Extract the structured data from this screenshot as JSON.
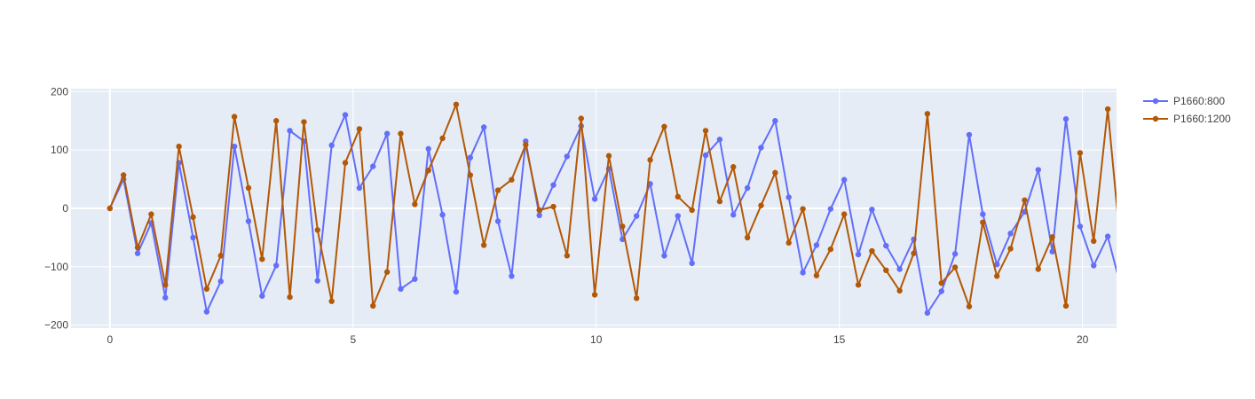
{
  "chart_data": {
    "type": "line",
    "mode": "lines+markers",
    "xlim": [
      -0.8,
      20.7
    ],
    "ylim": [
      -205,
      205
    ],
    "x_ticks": [
      0,
      5,
      10,
      15,
      20
    ],
    "y_ticks": [
      -200,
      -100,
      0,
      100,
      200
    ],
    "grid": true,
    "legend_position": "top-right",
    "colors": {
      "plot_bg": "#e5ecf6",
      "grid": "#ffffff"
    },
    "series": [
      {
        "name": "P1660:800",
        "color": "#636efa",
        "x": [
          0,
          0.28,
          0.57,
          0.85,
          1.14,
          1.42,
          1.71,
          1.99,
          2.28,
          2.56,
          2.85,
          3.13,
          3.42,
          3.7,
          3.99,
          4.27,
          4.56,
          4.84,
          5.13,
          5.41,
          5.7,
          5.98,
          6.27,
          6.55,
          6.84,
          7.12,
          7.41,
          7.69,
          7.98,
          8.26,
          8.55,
          8.83,
          9.12,
          9.4,
          9.69,
          9.97,
          10.26,
          10.54,
          10.83,
          11.11,
          11.4,
          11.68,
          11.97,
          12.25,
          12.54,
          12.82,
          13.11,
          13.39,
          13.68,
          13.96,
          14.25,
          14.53,
          14.82,
          15.1,
          15.39,
          15.67,
          15.96,
          16.24,
          16.53,
          16.81,
          17.1,
          17.38,
          17.67,
          17.95,
          18.24,
          18.52,
          18.81,
          19.09,
          19.38,
          19.66,
          19.95,
          20.23,
          20.52,
          20.8
        ],
        "y": [
          0,
          50,
          -77,
          -25,
          -153,
          78,
          -50,
          -177,
          -125,
          106,
          -22,
          -150,
          -98,
          133,
          115,
          -124,
          108,
          160,
          35,
          72,
          128,
          -138,
          -121,
          102,
          -11,
          -143,
          87,
          139,
          -22,
          -116,
          115,
          -12,
          40,
          89,
          141,
          16,
          68,
          -53,
          -13,
          42,
          -81,
          -13,
          -94,
          91,
          118,
          -11,
          35,
          104,
          150,
          19,
          -110,
          -63,
          -1,
          49,
          -79,
          -2,
          -64,
          -104,
          -53,
          -179,
          -142,
          -78,
          126,
          -10,
          -96,
          -43,
          -6,
          66,
          -74,
          153,
          -31,
          -98,
          -48,
          -138
        ]
      },
      {
        "name": "P1660:1200",
        "color": "#b35806",
        "x": [
          0,
          0.28,
          0.57,
          0.85,
          1.14,
          1.42,
          1.71,
          1.99,
          2.28,
          2.56,
          2.85,
          3.13,
          3.42,
          3.7,
          3.99,
          4.27,
          4.56,
          4.84,
          5.13,
          5.41,
          5.7,
          5.98,
          6.27,
          6.55,
          6.84,
          7.12,
          7.41,
          7.69,
          7.98,
          8.26,
          8.55,
          8.83,
          9.12,
          9.4,
          9.69,
          9.97,
          10.26,
          10.54,
          10.83,
          11.11,
          11.4,
          11.68,
          11.97,
          12.25,
          12.54,
          12.82,
          13.11,
          13.39,
          13.68,
          13.96,
          14.25,
          14.53,
          14.82,
          15.1,
          15.39,
          15.67,
          15.96,
          16.24,
          16.53,
          16.81,
          17.1,
          17.38,
          17.67,
          17.95,
          18.24,
          18.52,
          18.81,
          19.09,
          19.38,
          19.66,
          19.95,
          20.23,
          20.52,
          20.8
        ],
        "y": [
          0,
          57,
          -67,
          -10,
          -131,
          106,
          -15,
          -138,
          -81,
          157,
          35,
          -87,
          150,
          -152,
          148,
          -37,
          -159,
          78,
          136,
          -167,
          -109,
          128,
          7,
          65,
          120,
          178,
          57,
          -63,
          31,
          49,
          109,
          -3,
          3,
          -81,
          154,
          -148,
          90,
          -31,
          -154,
          83,
          140,
          20,
          -3,
          133,
          12,
          71,
          -50,
          5,
          61,
          -59,
          -1,
          -115,
          -70,
          -10,
          -131,
          -73,
          -106,
          -141,
          -77,
          162,
          -128,
          -101,
          -168,
          -24,
          -116,
          -69,
          14,
          -104,
          -49,
          -167,
          95,
          -56,
          170,
          -80
        ]
      }
    ]
  }
}
